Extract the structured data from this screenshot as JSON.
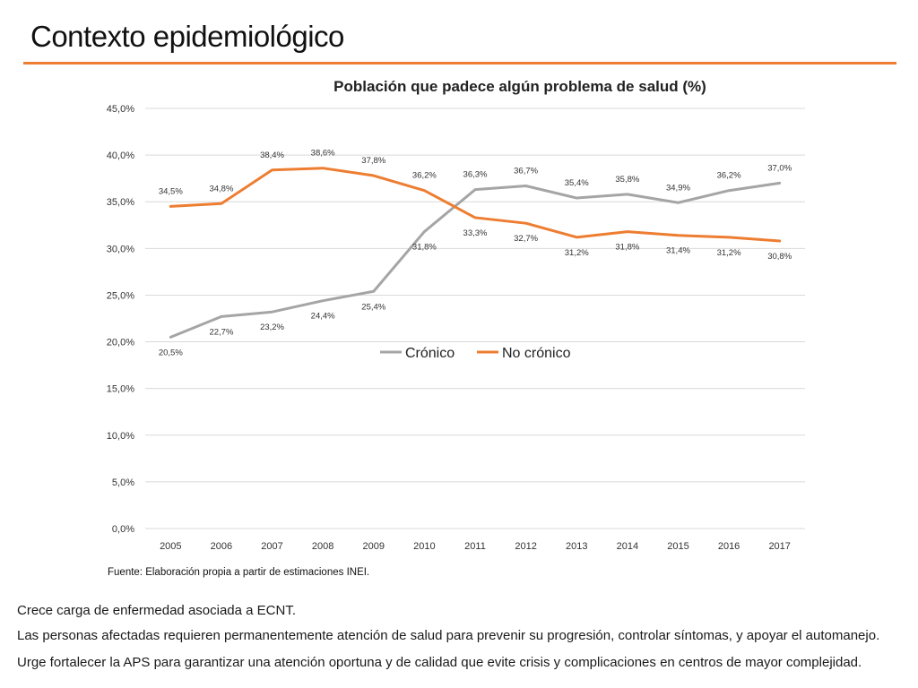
{
  "slide": {
    "title": "Contexto epidemiológico",
    "accent_color": "#ED7D31",
    "source": "Fuente: Elaboración propia a partir de estimaciones INEI.",
    "bullets": [
      "Crece carga de enfermedad asociada a ECNT.",
      "Las personas afectadas requieren permanentemente atención de salud para prevenir su progresión, controlar síntomas, y apoyar el automanejo.",
      "Urge fortalecer la APS para garantizar una atención oportuna y de calidad que evite crisis y complicaciones en centros de mayor complejidad."
    ]
  },
  "chart_data": {
    "type": "line",
    "title": "Población que padece algún problema de salud (%)",
    "xlabel": "",
    "ylabel": "",
    "x": [
      "2005",
      "2006",
      "2007",
      "2008",
      "2009",
      "2010",
      "2011",
      "2012",
      "2013",
      "2014",
      "2015",
      "2016",
      "2017"
    ],
    "ylim": [
      0,
      45
    ],
    "yticks": [
      0,
      5,
      10,
      15,
      20,
      25,
      30,
      35,
      40,
      45
    ],
    "ytick_labels": [
      "0,0%",
      "5,0%",
      "10,0%",
      "15,0%",
      "20,0%",
      "25,0%",
      "30,0%",
      "35,0%",
      "40,0%",
      "45,0%"
    ],
    "grid": true,
    "legend_position": "inside-center",
    "series": [
      {
        "name": "Crónico",
        "color": "#A5A5A5",
        "values": [
          20.5,
          22.7,
          23.2,
          24.4,
          25.4,
          31.8,
          36.3,
          36.7,
          35.4,
          35.8,
          34.9,
          36.2,
          37.0
        ],
        "labels": [
          "20,5%",
          "22,7%",
          "23,2%",
          "24,4%",
          "25,4%",
          "31,8%",
          "36,3%",
          "36,7%",
          "35,4%",
          "35,8%",
          "34,9%",
          "36,2%",
          "37,0%"
        ]
      },
      {
        "name": "No crónico",
        "color": "#ED7D31",
        "values": [
          34.5,
          34.8,
          38.4,
          38.6,
          37.8,
          36.2,
          33.3,
          32.7,
          31.2,
          31.8,
          31.4,
          31.2,
          30.8
        ],
        "labels": [
          "34,5%",
          "34,8%",
          "38,4%",
          "38,6%",
          "37,8%",
          "36,2%",
          "33,3%",
          "32,7%",
          "31,2%",
          "31,8%",
          "31,4%",
          "31,2%",
          "30,8%"
        ]
      }
    ]
  }
}
